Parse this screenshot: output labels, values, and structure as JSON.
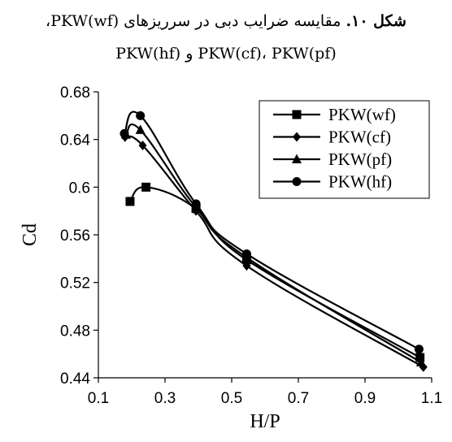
{
  "caption": {
    "label": "شکل ۱۰.",
    "text_line1": " مقایسه ضرایب دبی در سرریزهای PKW(wf)،",
    "text_line2": "PKW(cf)، PKW(pf) و PKW(hf)"
  },
  "chart_data": {
    "type": "line",
    "xlabel": "H/P",
    "ylabel": "Cd",
    "xlim": [
      0.1,
      1.1
    ],
    "ylim": [
      0.44,
      0.68
    ],
    "xticks": [
      "0.1",
      "0.3",
      "0.5",
      "0.7",
      "0.9",
      "1.1"
    ],
    "yticks": [
      "0.44",
      "0.48",
      "0.52",
      "0.56",
      "0.6",
      "0.64",
      "0.68"
    ],
    "legend_position": "top-right",
    "series": [
      {
        "name": "PKW(wf)",
        "marker": "square",
        "points": [
          [
            0.195,
            0.588
          ],
          [
            0.243,
            0.6
          ],
          [
            0.393,
            0.582
          ],
          [
            0.545,
            0.539
          ],
          [
            1.065,
            0.457
          ]
        ]
      },
      {
        "name": "PKW(cf)",
        "marker": "diamond",
        "points": [
          [
            0.18,
            0.642
          ],
          [
            0.233,
            0.635
          ],
          [
            0.393,
            0.58
          ],
          [
            0.545,
            0.534
          ],
          [
            1.075,
            0.449
          ]
        ]
      },
      {
        "name": "PKW(pf)",
        "marker": "triangle",
        "points": [
          [
            0.183,
            0.644
          ],
          [
            0.226,
            0.648
          ],
          [
            0.393,
            0.583
          ],
          [
            0.545,
            0.541
          ],
          [
            1.068,
            0.453
          ]
        ]
      },
      {
        "name": "PKW(hf)",
        "marker": "circle",
        "points": [
          [
            0.178,
            0.645
          ],
          [
            0.226,
            0.66
          ],
          [
            0.393,
            0.586
          ],
          [
            0.545,
            0.544
          ],
          [
            1.062,
            0.464
          ]
        ]
      }
    ]
  }
}
